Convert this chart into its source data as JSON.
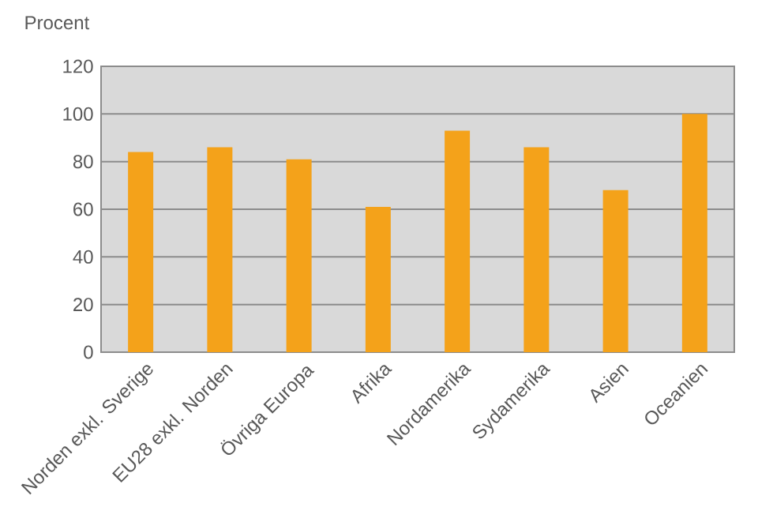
{
  "chart_data": {
    "type": "bar",
    "ylabel": "Procent",
    "categories": [
      "Norden exkl. Sverige",
      "EU28 exkl. Norden",
      "Övriga Europa",
      "Afrika",
      "Nordamerika",
      "Sydamerika",
      "Asien",
      "Oceanien"
    ],
    "values": [
      84,
      86,
      81,
      61,
      93,
      86,
      68,
      100
    ],
    "color": "#f4a21a",
    "ylim": [
      0,
      120
    ],
    "yticks": [
      0,
      20,
      40,
      60,
      80,
      100,
      120
    ],
    "grid": "y",
    "legend": false
  }
}
